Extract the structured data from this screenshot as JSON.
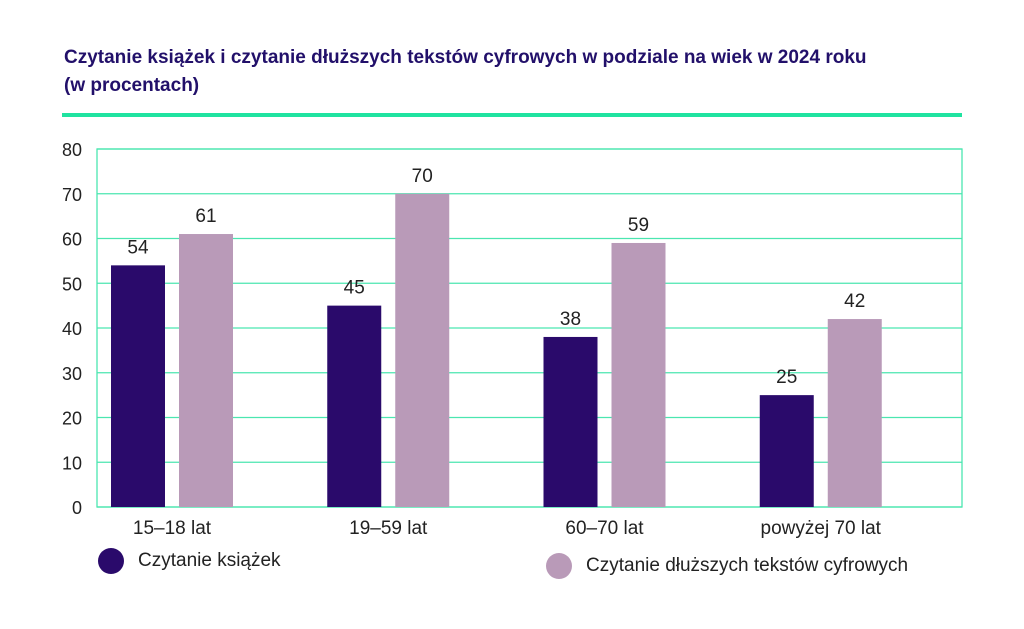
{
  "colors": {
    "primary": "#2a0a6b",
    "secondary": "#b99ab8",
    "grid": "#4be6b0",
    "title": "#22106a"
  },
  "chart_data": {
    "type": "bar",
    "title": "Czytanie książek i czytanie dłuższych tekstów cyfrowych w podziale na wiek w 2024 roku",
    "subtitle": "(w procentach)",
    "categories": [
      "15–18 lat",
      "19–59 lat",
      "60–70 lat",
      "powyżej 70 lat"
    ],
    "series": [
      {
        "name": "Czytanie książek",
        "values": [
          54,
          45,
          38,
          25
        ]
      },
      {
        "name": "Czytanie dłuższych tekstów cyfrowych",
        "values": [
          61,
          70,
          59,
          42
        ]
      }
    ],
    "ylim": [
      0,
      80
    ],
    "yticks": [
      0,
      10,
      20,
      30,
      40,
      50,
      60,
      70,
      80
    ],
    "xlabel": "",
    "ylabel": "",
    "grid": true,
    "legend": "bottom"
  }
}
